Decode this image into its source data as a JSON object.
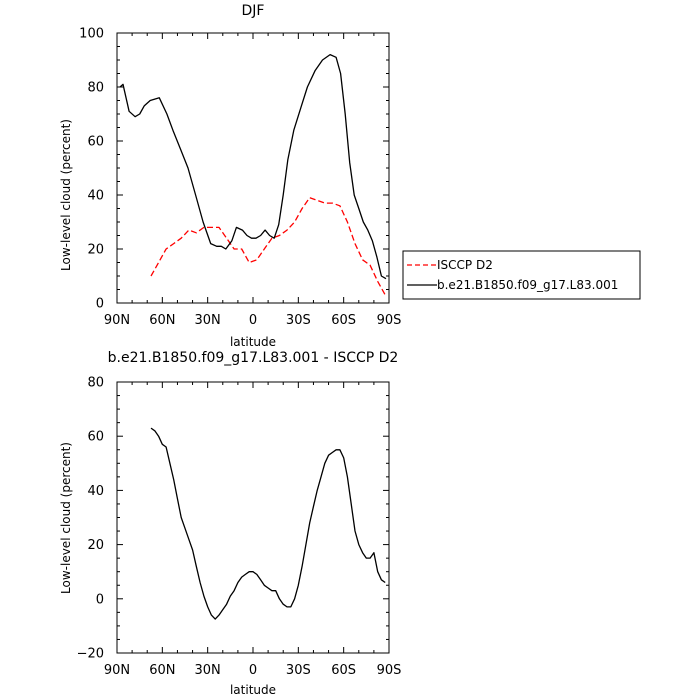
{
  "chart_data": [
    {
      "type": "line",
      "title": "DJF",
      "xlabel": "latitude",
      "ylabel": "Low-level cloud (percent)",
      "xlim": [
        90,
        -90
      ],
      "ylim": [
        0,
        100
      ],
      "xticks": [
        90,
        60,
        30,
        0,
        -30,
        -60,
        -90
      ],
      "xtick_labels": [
        "90N",
        "60N",
        "30N",
        "0",
        "30S",
        "60S",
        "90S"
      ],
      "yticks": [
        0,
        20,
        40,
        60,
        80,
        100
      ],
      "ytick_labels": [
        "0",
        "20",
        "40",
        "60",
        "80",
        "100"
      ],
      "legend_position": "right",
      "series": [
        {
          "name": "ISCCP D2",
          "color": "#ff0000",
          "dash": true,
          "x": [
            67.5,
            62.5,
            57.5,
            52.5,
            47.5,
            42.5,
            37.5,
            32.5,
            27.5,
            22.5,
            17.5,
            12.5,
            7.5,
            2.5,
            -2.5,
            -7.5,
            -12.5,
            -17.5,
            -22.5,
            -27.5,
            -32.5,
            -37.5,
            -42.5,
            -47.5,
            -52.5,
            -57.5,
            -62.5,
            -67.5,
            -72.5,
            -77.5,
            -82.5,
            -87.5
          ],
          "y": [
            10,
            15,
            20,
            22,
            24,
            27,
            26,
            28,
            28,
            28,
            24,
            20,
            20,
            15,
            16,
            20,
            24,
            25,
            27,
            30,
            35,
            39,
            38,
            37,
            37,
            36,
            30,
            22,
            16,
            14,
            8,
            3
          ]
        },
        {
          "name": "b.e21.B1850.f09_g17.L83.001",
          "color": "#000000",
          "dash": false,
          "x": [
            88,
            86,
            82,
            78,
            75,
            72,
            68,
            62,
            57,
            53,
            48,
            43,
            38,
            33,
            28,
            24,
            21,
            18,
            14,
            11,
            7,
            4,
            1,
            -2,
            -5,
            -8,
            -11,
            -14,
            -17,
            -20,
            -23,
            -27,
            -32,
            -36,
            -41,
            -46,
            -51,
            -55,
            -58,
            -61,
            -64,
            -67,
            -70,
            -73,
            -76,
            -79,
            -82,
            -85,
            -88
          ],
          "y": [
            80,
            81,
            71,
            69,
            70,
            73,
            75,
            76,
            70,
            64,
            57,
            50,
            40,
            30,
            22,
            21,
            21,
            20,
            23,
            28,
            27,
            25,
            24,
            24,
            25,
            27,
            25,
            24,
            29,
            40,
            53,
            64,
            73,
            80,
            86,
            90,
            92,
            91,
            85,
            70,
            52,
            40,
            35,
            30,
            27,
            23,
            17,
            10,
            9
          ]
        }
      ]
    },
    {
      "type": "line",
      "title": "b.e21.B1850.f09_g17.L83.001 - ISCCP D2",
      "xlabel": "latitude",
      "ylabel": "Low-level cloud (percent)",
      "xlim": [
        90,
        -90
      ],
      "ylim": [
        -20,
        80
      ],
      "xticks": [
        90,
        60,
        30,
        0,
        -30,
        -60,
        -90
      ],
      "xtick_labels": [
        "90N",
        "60N",
        "30N",
        "0",
        "30S",
        "60S",
        "90S"
      ],
      "yticks": [
        -20,
        0,
        20,
        40,
        60,
        80
      ],
      "ytick_labels": [
        "−20",
        "0",
        "20",
        "40",
        "60",
        "80"
      ],
      "series": [
        {
          "color": "#000000",
          "dash": false,
          "x": [
            67.5,
            65,
            62.5,
            60,
            57.5,
            55,
            52.5,
            50,
            47.5,
            45,
            42.5,
            40,
            37.5,
            35,
            32.5,
            30,
            27.5,
            25,
            22.5,
            20,
            17.5,
            15,
            12.5,
            10,
            7.5,
            5,
            2.5,
            0,
            -2.5,
            -5,
            -7.5,
            -10,
            -12.5,
            -15,
            -17.5,
            -20,
            -22.5,
            -25,
            -27.5,
            -30,
            -32.5,
            -35,
            -37.5,
            -40,
            -42.5,
            -45,
            -47.5,
            -50,
            -52.5,
            -55,
            -57.5,
            -60,
            -62.5,
            -65,
            -67.5,
            -70,
            -72.5,
            -75,
            -77.5,
            -80,
            -82.5,
            -85,
            -87.5
          ],
          "y": [
            63,
            62,
            60,
            57,
            56,
            50,
            44,
            37,
            30,
            26,
            22,
            18,
            12,
            6,
            1,
            -3,
            -6,
            -7.5,
            -6,
            -4,
            -2,
            1,
            3,
            6,
            8,
            9,
            10,
            10,
            9,
            7,
            5,
            4,
            3,
            3,
            0,
            -2,
            -3,
            -3,
            0,
            5,
            12,
            20,
            28,
            34,
            40,
            45,
            50,
            53,
            54,
            55,
            55,
            52,
            45,
            35,
            25,
            20,
            17,
            15,
            15,
            17,
            10,
            7,
            6
          ]
        }
      ]
    }
  ]
}
